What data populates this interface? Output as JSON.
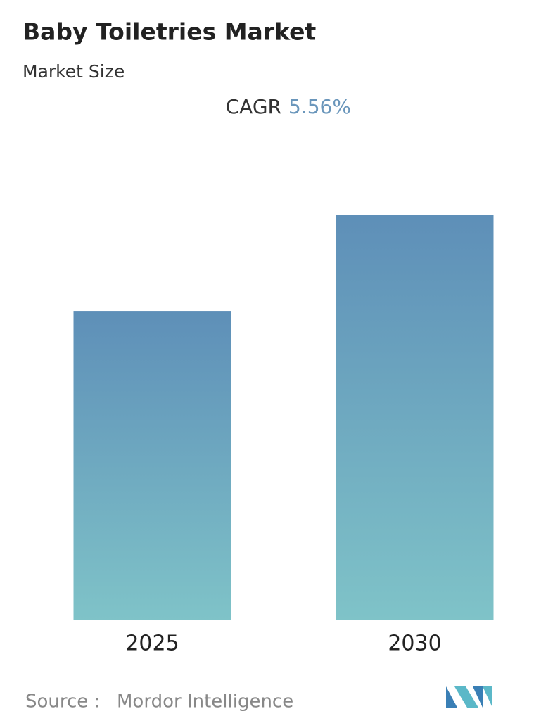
{
  "chart_data": {
    "type": "bar",
    "title": "Baby Toiletries Market",
    "subtitle": "Market Size",
    "cagr_label": "CAGR",
    "cagr_value": "5.56%",
    "categories": [
      "2025",
      "2030"
    ],
    "values": [
      100,
      131
    ],
    "color_top": "#5e8fb8",
    "color_bottom": "#7fc3c8",
    "source_label": "Source :",
    "source": "Mordor Intelligence"
  }
}
